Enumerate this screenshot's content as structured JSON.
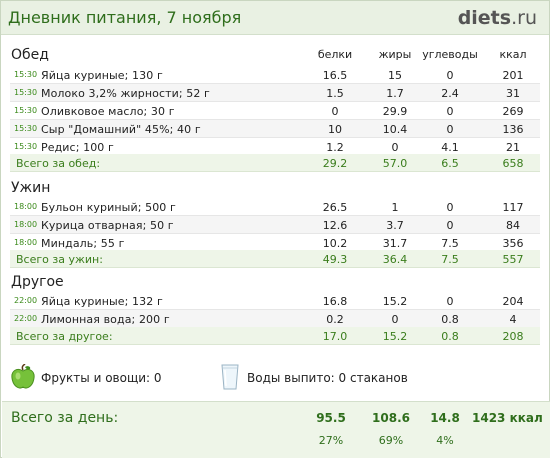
{
  "header": {
    "title": "Дневник питания, 7 ноября",
    "logo_main": "diets",
    "logo_tld": ".ru"
  },
  "columns": {
    "protein": "белки",
    "fat": "жиры",
    "carbs": "углеводы",
    "kcal": "ккал"
  },
  "meals": [
    {
      "name": "Обед",
      "items": [
        {
          "time": "15:30",
          "name": "Яйца куриные; 130 г",
          "protein": "16.5",
          "fat": "15",
          "carbs": "0",
          "kcal": "201"
        },
        {
          "time": "15:30",
          "name": "Молоко 3,2% жирности; 52 г",
          "protein": "1.5",
          "fat": "1.7",
          "carbs": "2.4",
          "kcal": "31"
        },
        {
          "time": "15:30",
          "name": "Оливковое масло; 30 г",
          "protein": "0",
          "fat": "29.9",
          "carbs": "0",
          "kcal": "269"
        },
        {
          "time": "15:30",
          "name": "Сыр \"Домашний\" 45%; 40 г",
          "protein": "10",
          "fat": "10.4",
          "carbs": "0",
          "kcal": "136"
        },
        {
          "time": "15:30",
          "name": "Редис; 100 г",
          "protein": "1.2",
          "fat": "0",
          "carbs": "4.1",
          "kcal": "21"
        }
      ],
      "total": {
        "label": "Всего за обед:",
        "protein": "29.2",
        "fat": "57.0",
        "carbs": "6.5",
        "kcal": "658"
      }
    },
    {
      "name": "Ужин",
      "items": [
        {
          "time": "18:00",
          "name": "Бульон куриный; 500 г",
          "protein": "26.5",
          "fat": "1",
          "carbs": "0",
          "kcal": "117"
        },
        {
          "time": "18:00",
          "name": "Курица отварная; 50 г",
          "protein": "12.6",
          "fat": "3.7",
          "carbs": "0",
          "kcal": "84"
        },
        {
          "time": "18:00",
          "name": "Миндаль; 55 г",
          "protein": "10.2",
          "fat": "31.7",
          "carbs": "7.5",
          "kcal": "356"
        }
      ],
      "total": {
        "label": "Всего за ужин:",
        "protein": "49.3",
        "fat": "36.4",
        "carbs": "7.5",
        "kcal": "557"
      }
    },
    {
      "name": "Другое",
      "items": [
        {
          "time": "22:00",
          "name": "Яйца куриные; 132 г",
          "protein": "16.8",
          "fat": "15.2",
          "carbs": "0",
          "kcal": "204"
        },
        {
          "time": "22:00",
          "name": "Лимонная вода; 200 г",
          "protein": "0.2",
          "fat": "0",
          "carbs": "0.8",
          "kcal": "4"
        }
      ],
      "total": {
        "label": "Всего за другое:",
        "protein": "17.0",
        "fat": "15.2",
        "carbs": "0.8",
        "kcal": "208"
      }
    }
  ],
  "extras": {
    "fruits_icon": "green-apple-icon",
    "fruits_label": "Фрукты и овощи: 0",
    "water_icon": "water-glass-icon",
    "water_label": "Воды выпито: 0 стаканов"
  },
  "day_total": {
    "label": "Всего за день:",
    "protein": "95.5",
    "fat": "108.6",
    "carbs": "14.8",
    "kcal": "1423 ккал",
    "protein_pct": "27%",
    "fat_pct": "69%",
    "carbs_pct": "4%"
  },
  "colors": {
    "accent_green": "#2f6e1c",
    "header_bg": "#e9f1e3",
    "total_bg": "#eef5e8"
  }
}
